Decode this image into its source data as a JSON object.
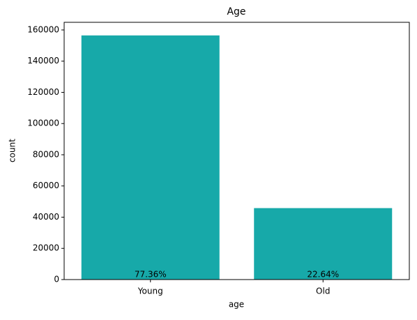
{
  "chart_data": {
    "type": "bar",
    "title": "Age",
    "x_label": "age",
    "y_label": "count",
    "categories": [
      "Young",
      "Old"
    ],
    "values": [
      156500,
      45800
    ],
    "annotations": [
      "77.36%",
      "22.64%"
    ],
    "color": "#17a9a9",
    "ylim": [
      0,
      164900
    ],
    "yticks": [
      0,
      20000,
      40000,
      60000,
      80000,
      100000,
      120000,
      140000,
      160000
    ],
    "grid": false
  }
}
